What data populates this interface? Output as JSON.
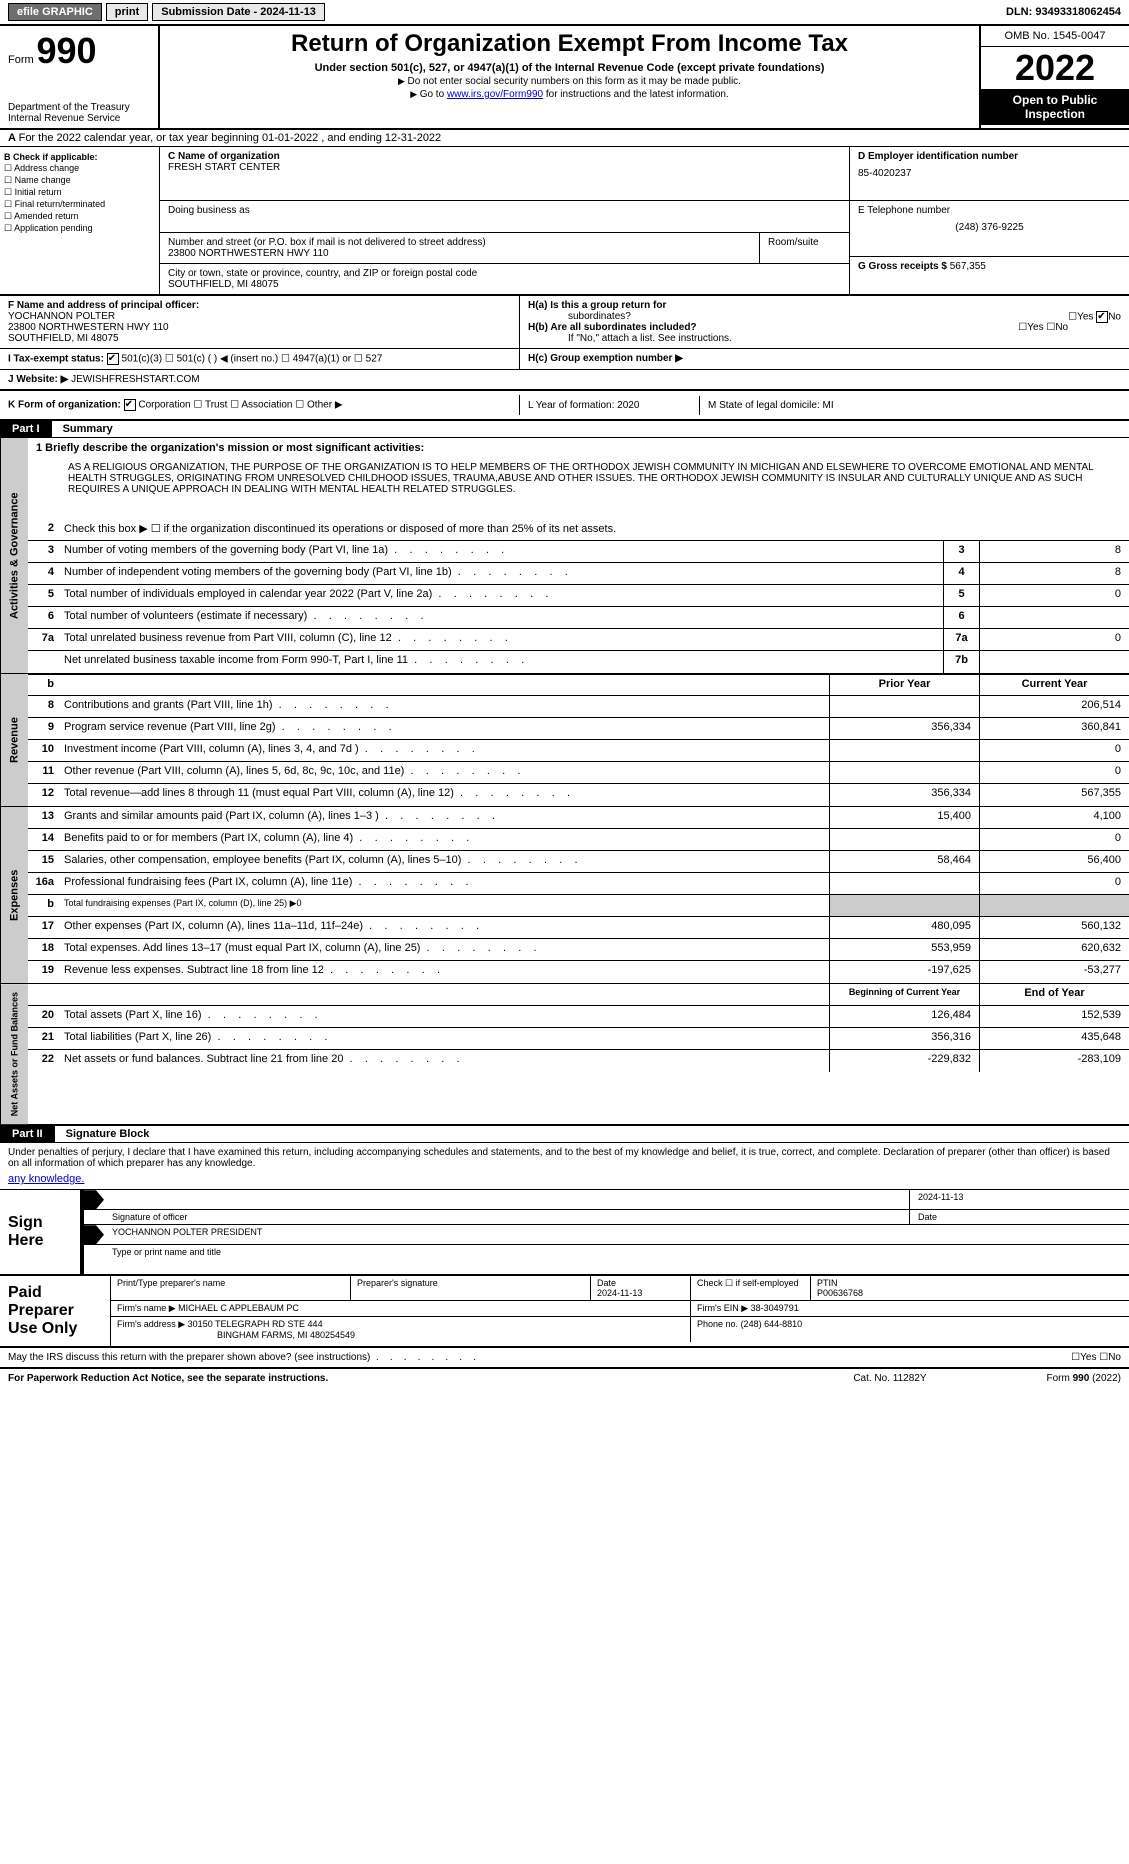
{
  "topbar": {
    "efile": "efile GRAPHIC",
    "print": "print",
    "subdate_label": "Submission Date - 2024-11-13",
    "dln_label": "DLN: 93493318062454"
  },
  "header": {
    "form_label": "Form",
    "form_num": "990",
    "dept": "Department of the Treasury",
    "irs": "Internal Revenue Service",
    "title": "Return of Organization Exempt From Income Tax",
    "subtitle": "Under section 501(c), 527, or 4947(a)(1) of the Internal Revenue Code (except private foundations)",
    "note1": "Do not enter social security numbers on this form as it may be made public.",
    "note2_pre": "Go to ",
    "note2_link": "www.irs.gov/Form990",
    "note2_post": " for instructions and the latest information.",
    "omb": "OMB No. 1545-0047",
    "year": "2022",
    "open": "Open to Public Inspection"
  },
  "rowA": "For the 2022 calendar year, or tax year beginning 01-01-2022    , and ending 12-31-2022",
  "colB": {
    "hdr": "B Check if applicable:",
    "items": [
      "Address change",
      "Name change",
      "Initial return",
      "Final return/terminated",
      "Amended return",
      "Application pending"
    ]
  },
  "colC": {
    "name_lbl": "C Name of organization",
    "name": "FRESH START CENTER",
    "dba_lbl": "Doing business as",
    "street_lbl": "Number and street (or P.O. box if mail is not delivered to street address)",
    "street": "23800 NORTHWESTERN HWY 110",
    "room_lbl": "Room/suite",
    "city_lbl": "City or town, state or province, country, and ZIP or foreign postal code",
    "city": "SOUTHFIELD, MI  48075"
  },
  "colD": {
    "lbl": "D Employer identification number",
    "val": "85-4020237"
  },
  "colE": {
    "lbl": "E Telephone number",
    "val": "(248) 376-9225"
  },
  "colG": {
    "lbl": "G Gross receipts $",
    "val": "567,355"
  },
  "colF": {
    "lbl": "F  Name and address of principal officer:",
    "name": "YOCHANNON POLTER",
    "addr1": "23800 NORTHWESTERN HWY 110",
    "addr2": "SOUTHFIELD, MI  48075"
  },
  "colH": {
    "a": "H(a)  Is this a group return for",
    "a2": "subordinates?",
    "b": "H(b)  Are all subordinates included?",
    "note": "If \"No,\" attach a list. See instructions.",
    "c": "H(c)  Group exemption number ▶"
  },
  "rowI": {
    "lbl": "I    Tax-exempt status:",
    "opts": [
      "501(c)(3)",
      "501(c) (  ) ◀ (insert no.)",
      "4947(a)(1) or",
      "527"
    ]
  },
  "rowJ": {
    "lbl": "J    Website: ▶",
    "val": "JEWISHFRESHSTART.COM"
  },
  "rowK": {
    "lbl": "K Form of organization:",
    "opts": [
      "Corporation",
      "Trust",
      "Association",
      "Other ▶"
    ]
  },
  "rowL": {
    "lbl": "L Year of formation: 2020"
  },
  "rowM": {
    "lbl": "M State of legal domicile: MI"
  },
  "yesno": {
    "yes": "Yes",
    "no": "No"
  },
  "part1": {
    "hdr": "Part I",
    "title": "Summary",
    "mission_lbl": "1  Briefly describe the organization's mission or most significant activities:",
    "mission": "AS A RELIGIOUS ORGANIZATION, THE PURPOSE OF THE ORGANIZATION IS TO HELP MEMBERS OF THE ORTHODOX JEWISH COMMUNITY IN MICHIGAN AND ELSEWHERE TO OVERCOME EMOTIONAL AND MENTAL HEALTH STRUGGLES, ORIGINATING FROM UNRESOLVED CHILDHOOD ISSUES, TRAUMA,ABUSE AND OTHER ISSUES. THE ORTHODOX JEWISH COMMUNITY IS INSULAR AND CULTURALLY UNIQUE AND AS SUCH REQUIRES A UNIQUE APPROACH IN DEALING WITH MENTAL HEALTH RELATED STRUGGLES.",
    "sec_gov": "Activities & Governance",
    "sec_rev": "Revenue",
    "sec_exp": "Expenses",
    "sec_net": "Net Assets or Fund Balances",
    "col_prior": "Prior Year",
    "col_curr": "Current Year",
    "col_bcy": "Beginning of Current Year",
    "col_eoy": "End of Year",
    "lines_gov": [
      {
        "n": "2",
        "t": "Check this box ▶ ☐  if the organization discontinued its operations or disposed of more than 25% of its net assets."
      },
      {
        "n": "3",
        "t": "Number of voting members of the governing body (Part VI, line 1a)",
        "box": "3",
        "v": "8"
      },
      {
        "n": "4",
        "t": "Number of independent voting members of the governing body (Part VI, line 1b)",
        "box": "4",
        "v": "8"
      },
      {
        "n": "5",
        "t": "Total number of individuals employed in calendar year 2022 (Part V, line 2a)",
        "box": "5",
        "v": "0"
      },
      {
        "n": "6",
        "t": "Total number of volunteers (estimate if necessary)",
        "box": "6",
        "v": ""
      },
      {
        "n": "7a",
        "t": "Total unrelated business revenue from Part VIII, column (C), line 12",
        "box": "7a",
        "v": "0"
      },
      {
        "n": "",
        "t": "Net unrelated business taxable income from Form 990-T, Part I, line 11",
        "box": "7b",
        "v": ""
      }
    ],
    "lines_rev": [
      {
        "n": "8",
        "t": "Contributions and grants (Part VIII, line 1h)",
        "p": "",
        "c": "206,514"
      },
      {
        "n": "9",
        "t": "Program service revenue (Part VIII, line 2g)",
        "p": "356,334",
        "c": "360,841"
      },
      {
        "n": "10",
        "t": "Investment income (Part VIII, column (A), lines 3, 4, and 7d )",
        "p": "",
        "c": "0"
      },
      {
        "n": "11",
        "t": "Other revenue (Part VIII, column (A), lines 5, 6d, 8c, 9c, 10c, and 11e)",
        "p": "",
        "c": "0"
      },
      {
        "n": "12",
        "t": "Total revenue—add lines 8 through 11 (must equal Part VIII, column (A), line 12)",
        "p": "356,334",
        "c": "567,355"
      }
    ],
    "lines_exp": [
      {
        "n": "13",
        "t": "Grants and similar amounts paid (Part IX, column (A), lines 1–3 )",
        "p": "15,400",
        "c": "4,100"
      },
      {
        "n": "14",
        "t": "Benefits paid to or for members (Part IX, column (A), line 4)",
        "p": "",
        "c": "0"
      },
      {
        "n": "15",
        "t": "Salaries, other compensation, employee benefits (Part IX, column (A), lines 5–10)",
        "p": "58,464",
        "c": "56,400"
      },
      {
        "n": "16a",
        "t": "Professional fundraising fees (Part IX, column (A), line 11e)",
        "p": "",
        "c": "0"
      },
      {
        "n": "b",
        "t": "Total fundraising expenses (Part IX, column (D), line 25) ▶0",
        "grey": true
      },
      {
        "n": "17",
        "t": "Other expenses (Part IX, column (A), lines 11a–11d, 11f–24e)",
        "p": "480,095",
        "c": "560,132"
      },
      {
        "n": "18",
        "t": "Total expenses. Add lines 13–17 (must equal Part IX, column (A), line 25)",
        "p": "553,959",
        "c": "620,632"
      },
      {
        "n": "19",
        "t": "Revenue less expenses. Subtract line 18 from line 12",
        "p": "-197,625",
        "c": "-53,277"
      }
    ],
    "lines_net": [
      {
        "n": "20",
        "t": "Total assets (Part X, line 16)",
        "p": "126,484",
        "c": "152,539"
      },
      {
        "n": "21",
        "t": "Total liabilities (Part X, line 26)",
        "p": "356,316",
        "c": "435,648"
      },
      {
        "n": "22",
        "t": "Net assets or fund balances. Subtract line 21 from line 20",
        "p": "-229,832",
        "c": "-283,109"
      }
    ]
  },
  "part2": {
    "hdr": "Part II",
    "title": "Signature Block",
    "decl": "Under penalties of perjury, I declare that I have examined this return, including accompanying schedules and statements, and to the best of my knowledge and belief, it is true, correct, and complete. Declaration of preparer (other than officer) is based on all information of which preparer has any knowledge.",
    "sign_here": "Sign Here",
    "sig_lbl": "Signature of officer",
    "date_lbl": "Date",
    "date_val": "2024-11-13",
    "name_lbl": "Type or print name and title",
    "name_val": "YOCHANNON POLTER  PRESIDENT",
    "paid": "Paid Preparer Use Only",
    "prep_name_lbl": "Print/Type preparer's name",
    "prep_sig_lbl": "Preparer's signature",
    "prep_date_lbl": "Date",
    "prep_date": "2024-11-13",
    "prep_self": "Check ☐ if self-employed",
    "ptin_lbl": "PTIN",
    "ptin": "P00636768",
    "firm_name_lbl": "Firm's name    ▶",
    "firm_name": "MICHAEL C APPLEBAUM PC",
    "firm_ein_lbl": "Firm's EIN ▶",
    "firm_ein": "38-3049791",
    "firm_addr_lbl": "Firm's address ▶",
    "firm_addr1": "30150 TELEGRAPH RD STE 444",
    "firm_addr2": "BINGHAM FARMS, MI  480254549",
    "phone_lbl": "Phone no.",
    "phone": "(248) 644-8810",
    "discuss": "May the IRS discuss this return with the preparer shown above? (see instructions)"
  },
  "footer": {
    "left": "For Paperwork Reduction Act Notice, see the separate instructions.",
    "mid": "Cat. No. 11282Y",
    "right": "Form 990 (2022)"
  }
}
